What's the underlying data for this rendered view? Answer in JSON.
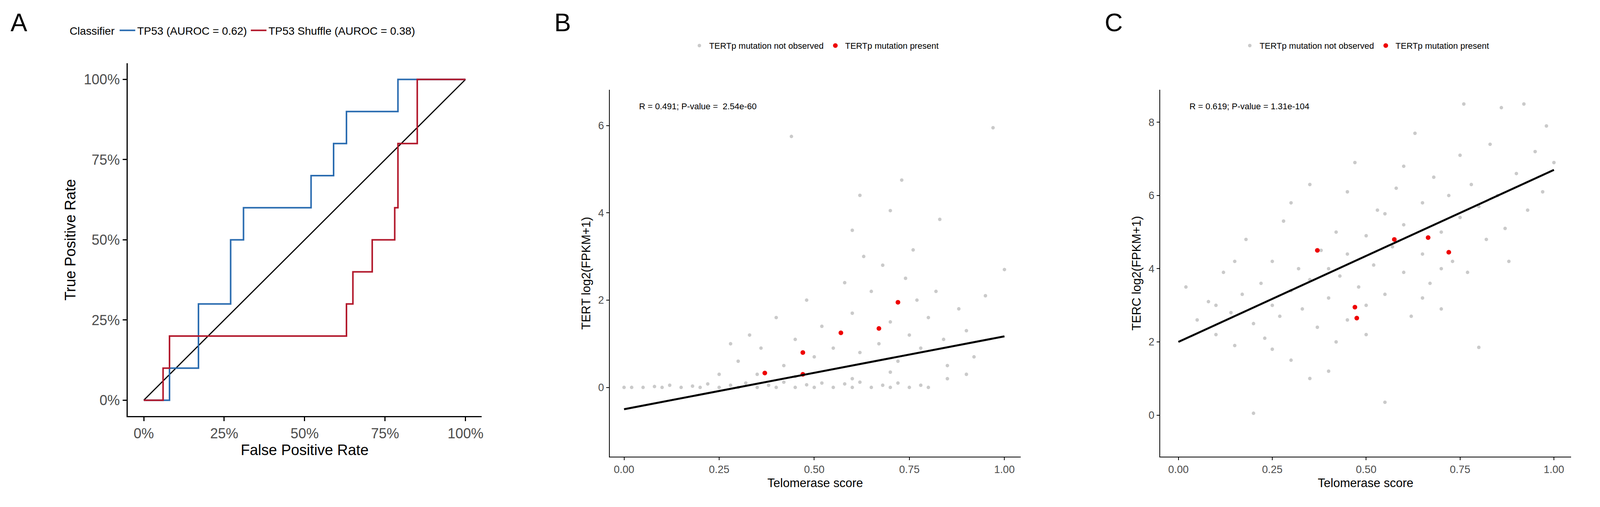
{
  "chart_data": [
    {
      "panel_label": "A",
      "type": "line",
      "x_label": "False Positive Rate",
      "y_label": "True Positive Rate",
      "legend_title": "Classifier",
      "legend": "top",
      "grid": false,
      "xlim": [
        -5,
        105
      ],
      "ylim": [
        -5,
        105
      ],
      "xticks": [
        {
          "value": 0,
          "label": "0%"
        },
        {
          "value": 25,
          "label": "25%"
        },
        {
          "value": 50,
          "label": "50%"
        },
        {
          "value": 75,
          "label": "75%"
        },
        {
          "value": 100,
          "label": "100%"
        }
      ],
      "yticks": [
        {
          "value": 0,
          "label": "0%"
        },
        {
          "value": 25,
          "label": "25%"
        },
        {
          "value": 50,
          "label": "50%"
        },
        {
          "value": 75,
          "label": "75%"
        },
        {
          "value": 100,
          "label": "100%"
        }
      ],
      "series": [
        {
          "name": "TP53 (AUROC = 0.62)",
          "color": "#2a6cb0",
          "x": [
            0,
            8,
            8,
            17,
            17,
            27,
            27,
            31,
            31,
            52,
            52,
            59,
            59,
            63,
            63,
            79,
            79,
            100
          ],
          "y": [
            0,
            0,
            10,
            10,
            30,
            30,
            50,
            50,
            60,
            60,
            70,
            70,
            80,
            80,
            90,
            90,
            100,
            100
          ]
        },
        {
          "name": "TP53 Shuffle (AUROC = 0.38)",
          "color": "#b2182b",
          "x": [
            0,
            6,
            6,
            8,
            8,
            63,
            63,
            65,
            65,
            71,
            71,
            78,
            78,
            79,
            79,
            85,
            85,
            100
          ],
          "y": [
            0,
            0,
            10,
            10,
            20,
            20,
            30,
            30,
            40,
            40,
            50,
            50,
            60,
            60,
            80,
            80,
            100,
            100
          ]
        }
      ],
      "reference_line": {
        "x": [
          0,
          100
        ],
        "y": [
          0,
          100
        ],
        "color": "#000000"
      }
    },
    {
      "panel_label": "B",
      "type": "scatter",
      "x_label": "Telomerase score",
      "y_label": "TERT log2(FPKM+1)",
      "annotation": "R = 0.491; P-value =  2.54e-60",
      "legend": "top",
      "grid": false,
      "xlim": [
        -0.038,
        1.043
      ],
      "ylim": [
        -1.59,
        6.82
      ],
      "xticks": [
        {
          "value": 0,
          "label": "0.00"
        },
        {
          "value": 0.25,
          "label": "0.25"
        },
        {
          "value": 0.5,
          "label": "0.50"
        },
        {
          "value": 0.75,
          "label": "0.75"
        },
        {
          "value": 1,
          "label": "1.00"
        }
      ],
      "yticks": [
        0,
        2,
        4,
        6
      ],
      "series": [
        {
          "name": "TERTp mutation not observed",
          "color": "#b3b3b3",
          "x": [
            0,
            0.02,
            0.05,
            0.08,
            0.1,
            0.12,
            0.15,
            0.18,
            0.2,
            0.22,
            0.25,
            0.28,
            0.3,
            0.32,
            0.35,
            0.38,
            0.4,
            0.42,
            0.45,
            0.48,
            0.5,
            0.52,
            0.55,
            0.58,
            0.6,
            0.62,
            0.65,
            0.68,
            0.7,
            0.72,
            0.75,
            0.78,
            0.8,
            0.3,
            0.33,
            0.36,
            0.4,
            0.42,
            0.45,
            0.48,
            0.5,
            0.52,
            0.55,
            0.58,
            0.6,
            0.62,
            0.63,
            0.65,
            0.67,
            0.68,
            0.7,
            0.72,
            0.74,
            0.75,
            0.77,
            0.78,
            0.8,
            0.82,
            0.84,
            0.85,
            0.88,
            0.9,
            0.92,
            0.95,
            0.25,
            0.28,
            0.35,
            0.45,
            0.6,
            0.7,
            0.85,
            0.9,
            0.44,
            0.97,
            0.73,
            0.62,
            0.7,
            0.83,
            0.6,
            1.0,
            0.76
          ],
          "y": [
            0,
            0,
            0,
            0.02,
            0,
            0.05,
            0,
            0.03,
            0,
            0.08,
            0,
            0.05,
            0,
            0.1,
            0,
            0.05,
            0,
            0.12,
            0,
            0.06,
            0,
            0.1,
            0,
            0.08,
            0,
            0.12,
            0,
            0.05,
            0,
            0.1,
            0,
            0.05,
            0,
            0.6,
            1.2,
            0.9,
            1.6,
            0.5,
            1.1,
            2.0,
            0.7,
            1.4,
            0.9,
            2.4,
            1.7,
            0.8,
            3.0,
            2.2,
            1.0,
            2.8,
            1.5,
            0.6,
            2.5,
            1.2,
            2.0,
            0.9,
            1.6,
            2.2,
            1.1,
            0.5,
            1.8,
            1.3,
            0.7,
            2.1,
            0.3,
            1.0,
            0.3,
            0.25,
            0.2,
            0.35,
            0.2,
            0.3,
            5.75,
            5.95,
            4.75,
            4.4,
            4.05,
            3.85,
            3.6,
            2.7,
            3.15
          ]
        },
        {
          "name": "TERTp mutation present",
          "color": "#ee0000",
          "x": [
            0.37,
            0.47,
            0.47,
            0.57,
            0.67,
            0.72
          ],
          "y": [
            0.33,
            0.8,
            0.3,
            1.25,
            1.35,
            1.95
          ]
        }
      ],
      "fit": {
        "x": [
          0,
          1
        ],
        "y": [
          -0.5,
          1.17
        ],
        "color": "#000000"
      }
    },
    {
      "panel_label": "C",
      "type": "scatter",
      "x_label": "Telomerase score",
      "y_label": "TERC log2(FPKM+1)",
      "annotation": "R = 0.619; P-value = 1.31e-104",
      "legend": "top",
      "grid": false,
      "xlim": [
        -0.049,
        1.046
      ],
      "ylim": [
        -1.14,
        8.89
      ],
      "xticks": [
        {
          "value": 0,
          "label": "0.00"
        },
        {
          "value": 0.25,
          "label": "0.25"
        },
        {
          "value": 0.5,
          "label": "0.50"
        },
        {
          "value": 0.75,
          "label": "0.75"
        },
        {
          "value": 1,
          "label": "1.00"
        }
      ],
      "yticks": [
        0,
        2,
        4,
        6,
        8
      ],
      "series": [
        {
          "name": "TERTp mutation not observed",
          "color": "#b3b3b3",
          "x": [
            0.02,
            0.05,
            0.08,
            0.1,
            0.12,
            0.14,
            0.15,
            0.17,
            0.18,
            0.2,
            0.2,
            0.22,
            0.23,
            0.25,
            0.25,
            0.27,
            0.28,
            0.3,
            0.3,
            0.32,
            0.33,
            0.35,
            0.35,
            0.37,
            0.38,
            0.4,
            0.4,
            0.42,
            0.43,
            0.45,
            0.45,
            0.47,
            0.48,
            0.5,
            0.5,
            0.52,
            0.53,
            0.55,
            0.55,
            0.57,
            0.58,
            0.6,
            0.6,
            0.62,
            0.63,
            0.65,
            0.65,
            0.67,
            0.68,
            0.7,
            0.7,
            0.72,
            0.73,
            0.75,
            0.75,
            0.77,
            0.78,
            0.8,
            0.8,
            0.82,
            0.83,
            0.85,
            0.87,
            0.88,
            0.9,
            0.92,
            0.93,
            0.95,
            0.97,
            1.0,
            0.98,
            0.86,
            0.76,
            0.45,
            0.3,
            0.15,
            0.6,
            0.55,
            0.42,
            0.35,
            0.5,
            0.4,
            0.65,
            0.7,
            0.25,
            0.1
          ],
          "y": [
            3.5,
            2.6,
            3.1,
            2.2,
            3.9,
            2.8,
            1.9,
            3.3,
            4.8,
            0.05,
            2.5,
            3.6,
            2.1,
            4.2,
            3.0,
            2.7,
            5.3,
            3.4,
            1.5,
            4.0,
            2.9,
            3.7,
            6.3,
            2.4,
            4.5,
            3.2,
            1.2,
            5.0,
            3.8,
            2.6,
            4.4,
            6.9,
            3.5,
            4.9,
            2.2,
            4.1,
            5.6,
            3.3,
            0.35,
            4.6,
            6.2,
            3.9,
            5.2,
            2.7,
            7.7,
            4.4,
            5.8,
            3.6,
            6.5,
            5.0,
            2.9,
            6.0,
            4.2,
            7.1,
            5.4,
            3.9,
            6.3,
            1.85,
            5.7,
            4.8,
            7.4,
            6.0,
            5.1,
            4.2,
            6.6,
            8.5,
            5.6,
            7.2,
            6.1,
            6.9,
            7.9,
            8.4,
            8.5,
            6.1,
            5.8,
            4.2,
            6.8,
            5.5,
            2.0,
            1.0,
            3.0,
            4.0,
            3.2,
            4.0,
            1.8,
            3.0
          ]
        },
        {
          "name": "TERTp mutation present",
          "color": "#ee0000",
          "x": [
            0.37,
            0.47,
            0.475,
            0.575,
            0.665,
            0.72
          ],
          "y": [
            4.5,
            2.95,
            2.65,
            4.8,
            4.85,
            4.45
          ]
        }
      ],
      "fit": {
        "x": [
          0,
          1
        ],
        "y": [
          2.0,
          6.7
        ],
        "color": "#000000"
      }
    }
  ]
}
